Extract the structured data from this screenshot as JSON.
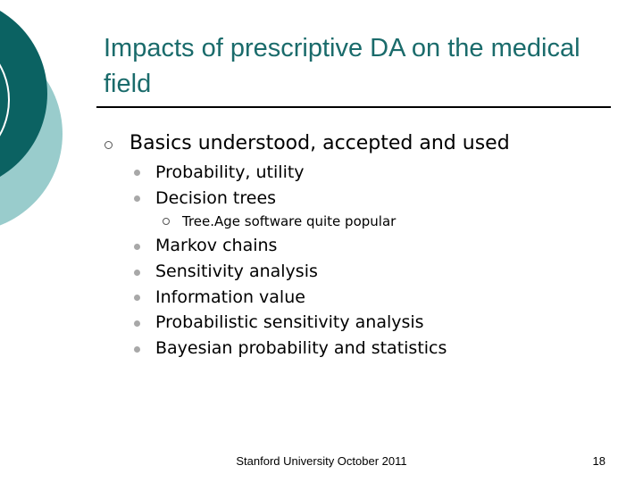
{
  "slide": {
    "title": "Impacts of prescriptive DA on the medical field",
    "bullets": [
      {
        "level": 1,
        "text": "Basics understood, accepted and used"
      },
      {
        "level": 2,
        "text": "Probability, utility"
      },
      {
        "level": 2,
        "text": "Decision trees"
      },
      {
        "level": 3,
        "text": "Tree.Age software quite popular"
      },
      {
        "level": 2,
        "text": "Markov chains"
      },
      {
        "level": 2,
        "text": "Sensitivity analysis"
      },
      {
        "level": 2,
        "text": "Information value"
      },
      {
        "level": 2,
        "text": "Probabilistic sensitivity analysis"
      },
      {
        "level": 2,
        "text": "Bayesian probability and statistics"
      }
    ],
    "footer": "Stanford University October 2011",
    "page_number": "18"
  },
  "theme": {
    "title_color": "#1a6b6b",
    "dark_teal": "#0b6262",
    "light_teal": "#99cccc"
  }
}
